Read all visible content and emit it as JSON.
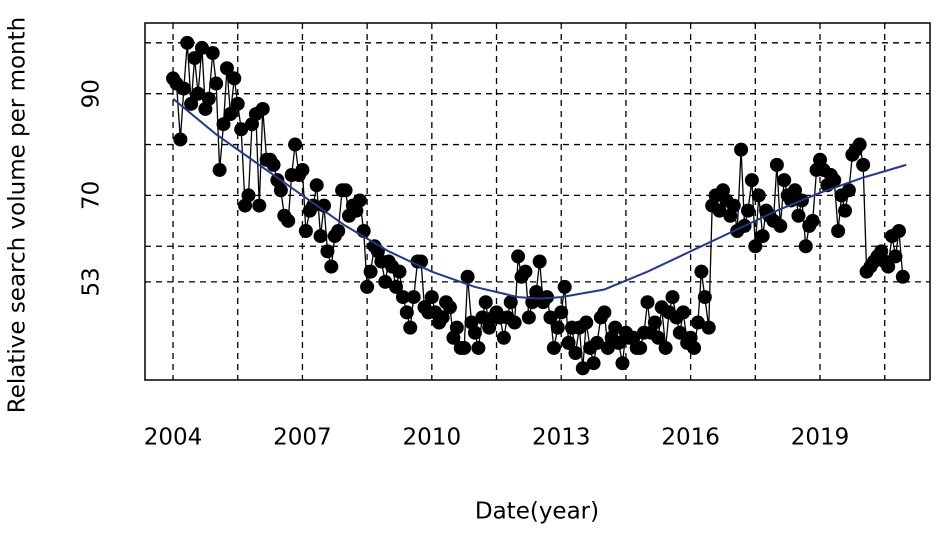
{
  "chart_data": {
    "type": "line",
    "xlabel": "Date(year)",
    "ylabel": "Relative search volume per month",
    "xlim": [
      2003.35,
      2021.55
    ],
    "ylim": [
      33.7,
      103.9
    ],
    "xticks": [
      2004,
      2007,
      2010,
      2013,
      2016,
      2019
    ],
    "yticks": [
      53,
      70,
      90
    ],
    "xgrid": [
      2004,
      2005.5,
      2007,
      2008.5,
      2010,
      2011.5,
      2013,
      2014.5,
      2016,
      2017.5,
      2019,
      2020.5
    ],
    "ygrid": [
      53,
      60,
      70,
      80,
      90,
      100
    ],
    "series": [
      {
        "color": "#000000",
        "marker": true,
        "x": [
          2004,
          2004.08,
          2004.17,
          2004.25,
          2004.33,
          2004.42,
          2004.5,
          2004.58,
          2004.67,
          2004.75,
          2004.83,
          2004.92,
          2005,
          2005.08,
          2005.17,
          2005.25,
          2005.33,
          2005.42,
          2005.5,
          2005.58,
          2005.67,
          2005.75,
          2005.83,
          2005.92,
          2006,
          2006.08,
          2006.17,
          2006.25,
          2006.33,
          2006.42,
          2006.5,
          2006.58,
          2006.67,
          2006.75,
          2006.83,
          2006.92,
          2007,
          2007.08,
          2007.17,
          2007.25,
          2007.33,
          2007.42,
          2007.5,
          2007.58,
          2007.67,
          2007.75,
          2007.83,
          2007.92,
          2008,
          2008.08,
          2008.17,
          2008.25,
          2008.33,
          2008.42,
          2008.5,
          2008.58,
          2008.67,
          2008.75,
          2008.83,
          2008.92,
          2009,
          2009.08,
          2009.17,
          2009.25,
          2009.33,
          2009.42,
          2009.5,
          2009.58,
          2009.67,
          2009.75,
          2009.83,
          2009.92,
          2010,
          2010.08,
          2010.17,
          2010.25,
          2010.33,
          2010.42,
          2010.5,
          2010.58,
          2010.67,
          2010.75,
          2010.83,
          2010.92,
          2011,
          2011.08,
          2011.17,
          2011.25,
          2011.33,
          2011.42,
          2011.5,
          2011.58,
          2011.67,
          2011.75,
          2011.83,
          2011.92,
          2012,
          2012.08,
          2012.17,
          2012.25,
          2012.33,
          2012.42,
          2012.5,
          2012.58,
          2012.67,
          2012.75,
          2012.83,
          2012.92,
          2013,
          2013.08,
          2013.17,
          2013.25,
          2013.33,
          2013.42,
          2013.5,
          2013.58,
          2013.67,
          2013.75,
          2013.83,
          2013.92,
          2014,
          2014.08,
          2014.17,
          2014.25,
          2014.33,
          2014.42,
          2014.5,
          2014.58,
          2014.67,
          2014.75,
          2014.83,
          2014.92,
          2015,
          2015.08,
          2015.17,
          2015.25,
          2015.33,
          2015.42,
          2015.5,
          2015.58,
          2015.67,
          2015.75,
          2015.83,
          2015.92,
          2016,
          2016.08,
          2016.17,
          2016.25,
          2016.33,
          2016.42,
          2016.5,
          2016.58,
          2016.67,
          2016.75,
          2016.83,
          2016.92,
          2017,
          2017.08,
          2017.17,
          2017.25,
          2017.33,
          2017.42,
          2017.5,
          2017.58,
          2017.67,
          2017.75,
          2017.83,
          2017.92,
          2018,
          2018.08,
          2018.17,
          2018.25,
          2018.33,
          2018.42,
          2018.5,
          2018.58,
          2018.67,
          2018.75,
          2018.83,
          2018.92,
          2019,
          2019.08,
          2019.17,
          2019.25,
          2019.33,
          2019.42,
          2019.5,
          2019.58,
          2019.67,
          2019.75,
          2019.83,
          2019.92,
          2020,
          2020.08,
          2020.17,
          2020.25,
          2020.33,
          2020.42,
          2020.5,
          2020.58,
          2020.67,
          2020.75,
          2020.83,
          2020.92
        ],
        "values": [
          93,
          92,
          81,
          91,
          100,
          88,
          97,
          90,
          99,
          87,
          89,
          98,
          92,
          75,
          84,
          95,
          86,
          93,
          88,
          83,
          68,
          70,
          84,
          86,
          68,
          87,
          77,
          77,
          76,
          73,
          71,
          66,
          65,
          74,
          80,
          74,
          75,
          63,
          67,
          68,
          72,
          62,
          68,
          59,
          56,
          62,
          63,
          71,
          71,
          66,
          68,
          67,
          69,
          63,
          52,
          55,
          60,
          59,
          57,
          53,
          57,
          56,
          52,
          55,
          50,
          47,
          44,
          50,
          57,
          57,
          48,
          47,
          50,
          47,
          45,
          46,
          49,
          48,
          42,
          44,
          40,
          40,
          54,
          45,
          43,
          40,
          46,
          49,
          44,
          46,
          47,
          46,
          42,
          46,
          49,
          45,
          58,
          54,
          55,
          46,
          49,
          51,
          57,
          49,
          50,
          46,
          40,
          44,
          47,
          52,
          41,
          44,
          39,
          44,
          36,
          45,
          40,
          37,
          41,
          46,
          47,
          40,
          42,
          44,
          41,
          37,
          43,
          42,
          42,
          40,
          40,
          43,
          49,
          43,
          45,
          42,
          48,
          40,
          47,
          50,
          46,
          43,
          47,
          41,
          42,
          40,
          45,
          55,
          50,
          44,
          68,
          70,
          67,
          71,
          69,
          66,
          68,
          63,
          79,
          64,
          67,
          73,
          60,
          70,
          62,
          67,
          66,
          65,
          76,
          64,
          73,
          70,
          69,
          71,
          66,
          69,
          60,
          64,
          65,
          75,
          77,
          75,
          72,
          74,
          73,
          63,
          70,
          67,
          71,
          78,
          79,
          80,
          76,
          55,
          56,
          57,
          58,
          59,
          57,
          56,
          62,
          58,
          63,
          54
        ]
      },
      {
        "color": "#1f3a8f",
        "marker": false,
        "x": [
          2004,
          2005,
          2006,
          2007,
          2008,
          2009,
          2010,
          2011,
          2012,
          2012.5,
          2013,
          2014,
          2015,
          2016,
          2017,
          2018,
          2019,
          2020,
          2021
        ],
        "values": [
          89,
          82,
          76,
          70,
          64,
          59,
          55,
          52,
          50,
          49.7,
          50,
          51.5,
          55,
          59,
          63,
          67,
          70.5,
          73.5,
          76
        ]
      }
    ]
  }
}
